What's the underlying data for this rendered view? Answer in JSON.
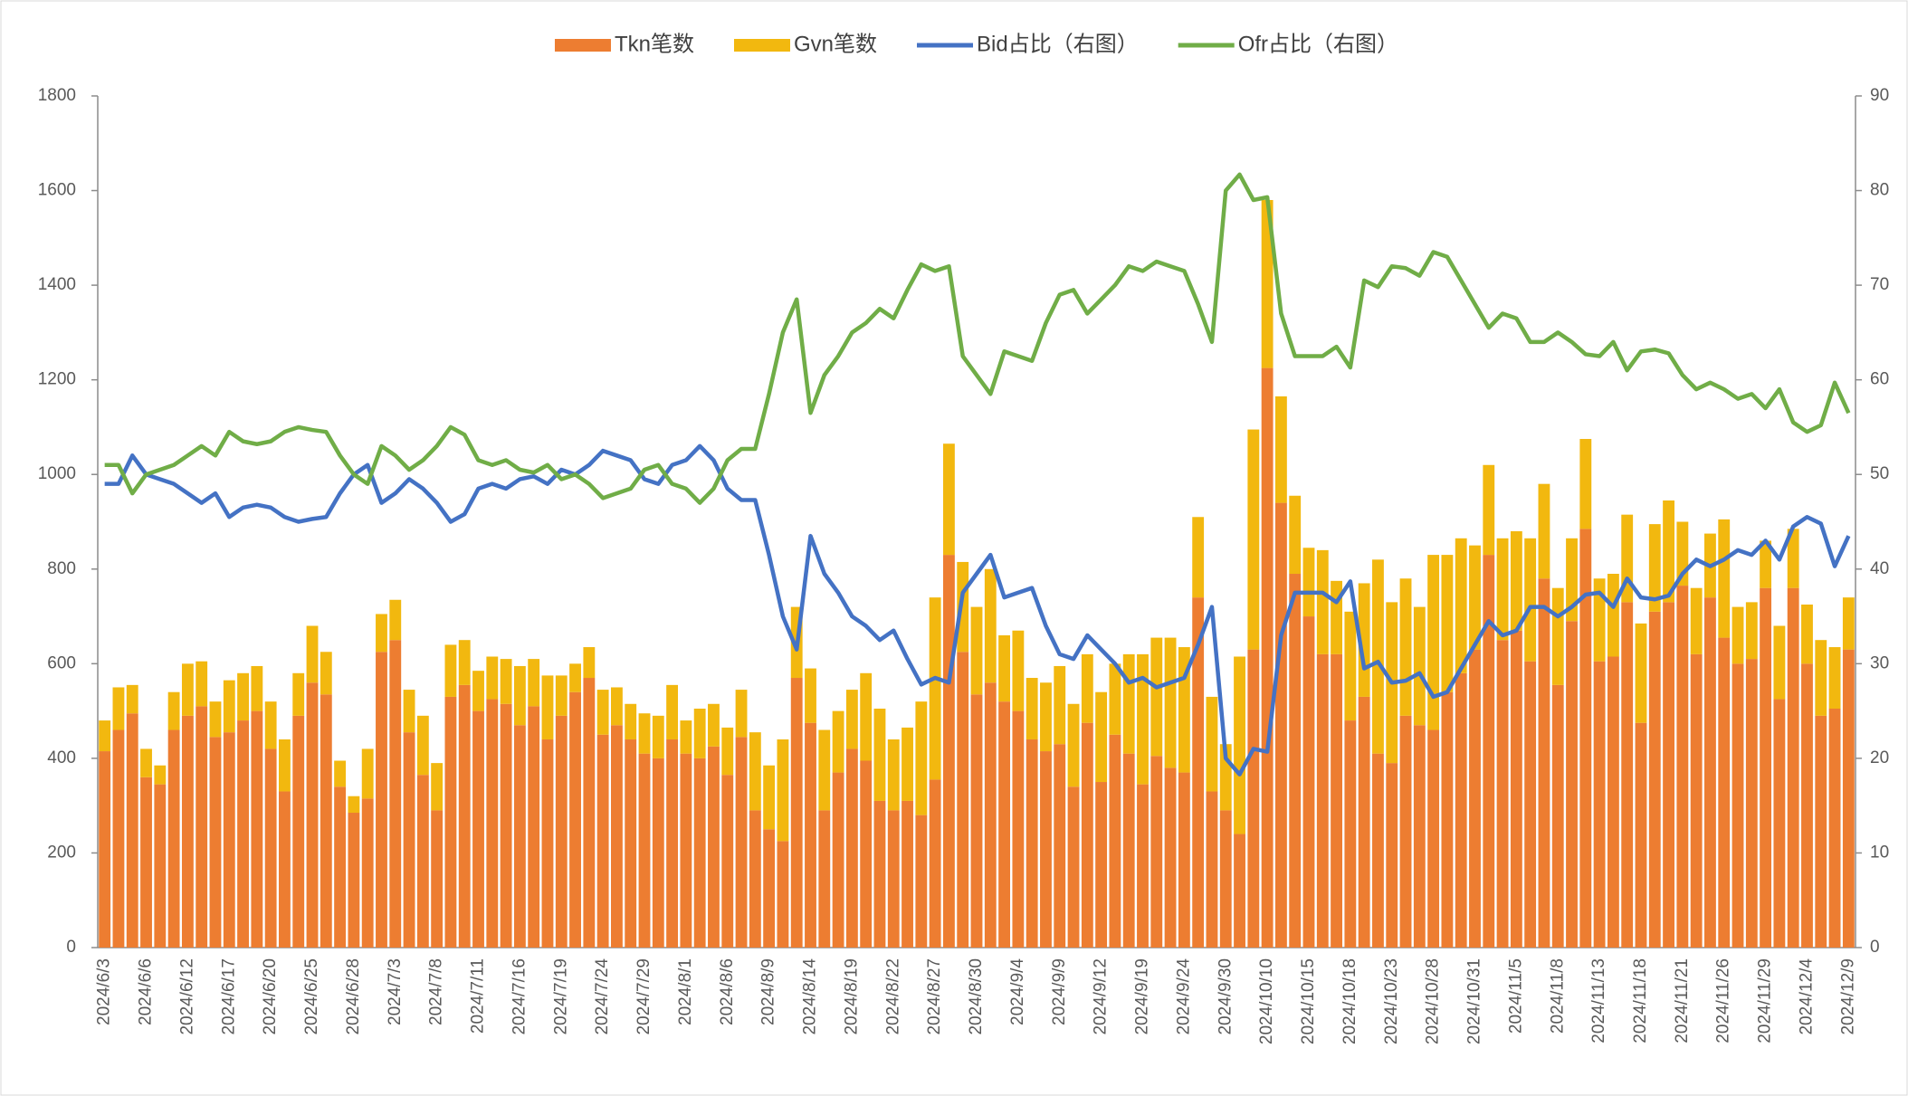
{
  "chart_data": {
    "type": "bar-line",
    "categories": [
      "2024/6/3",
      null,
      null,
      "2024/6/6",
      null,
      null,
      "2024/6/12",
      null,
      null,
      "2024/6/17",
      null,
      null,
      "2024/6/20",
      null,
      null,
      "2024/6/25",
      null,
      null,
      "2024/6/28",
      null,
      null,
      "2024/7/3",
      null,
      null,
      "2024/7/8",
      null,
      null,
      "2024/7/11",
      null,
      null,
      "2024/7/16",
      null,
      null,
      "2024/7/19",
      null,
      null,
      "2024/7/24",
      null,
      null,
      "2024/7/29",
      null,
      null,
      "2024/8/1",
      null,
      null,
      "2024/8/6",
      null,
      null,
      "2024/8/9",
      null,
      null,
      "2024/8/14",
      null,
      null,
      "2024/8/19",
      null,
      null,
      "2024/8/22",
      null,
      null,
      "2024/8/27",
      null,
      null,
      "2024/8/30",
      null,
      null,
      "2024/9/4",
      null,
      null,
      "2024/9/9",
      null,
      null,
      "2024/9/12",
      null,
      null,
      "2024/9/19",
      null,
      null,
      "2024/9/24",
      null,
      null,
      "2024/9/30",
      null,
      null,
      "2024/10/10",
      null,
      null,
      "2024/10/15",
      null,
      null,
      "2024/10/18",
      null,
      null,
      "2024/10/23",
      null,
      null,
      "2024/10/28",
      null,
      null,
      "2024/10/31",
      null,
      null,
      "2024/11/5",
      null,
      null,
      "2024/11/8",
      null,
      null,
      "2024/11/13",
      null,
      null,
      "2024/11/18",
      null,
      null,
      "2024/11/21",
      null,
      null,
      "2024/11/26",
      null,
      null,
      "2024/11/29",
      null,
      null,
      "2024/12/4",
      null,
      null,
      "2024/12/9"
    ],
    "series": [
      {
        "name": "Tkn笔数",
        "kind": "bar",
        "color": "#ed7d31",
        "values": [
          415,
          460,
          495,
          360,
          345,
          460,
          490,
          510,
          445,
          455,
          480,
          500,
          420,
          330,
          490,
          560,
          535,
          340,
          285,
          315,
          625,
          650,
          455,
          365,
          290,
          530,
          555,
          500,
          525,
          515,
          470,
          510,
          440,
          490,
          540,
          570,
          450,
          470,
          440,
          410,
          400,
          440,
          410,
          400,
          425,
          365,
          445,
          290,
          250,
          225,
          570,
          475,
          290,
          370,
          420,
          395,
          310,
          290,
          310,
          280,
          355,
          830,
          625,
          535,
          560,
          520,
          500,
          440,
          415,
          430,
          340,
          475,
          350,
          450,
          410,
          345,
          405,
          380,
          370,
          740,
          330,
          290,
          240,
          630,
          1225,
          940,
          790,
          700,
          620,
          620,
          480,
          530,
          410,
          390,
          490,
          470,
          460,
          540,
          580,
          630,
          830,
          650,
          670,
          605,
          780,
          555,
          690,
          885,
          605,
          615,
          730,
          475,
          710,
          730,
          765,
          620,
          740,
          655,
          600,
          610,
          760,
          525,
          760,
          600,
          490,
          505,
          630
        ]
      },
      {
        "name": "Gvn笔数",
        "kind": "bar",
        "color": "#f2b80f",
        "values": [
          65,
          90,
          60,
          60,
          40,
          80,
          110,
          95,
          75,
          110,
          100,
          95,
          100,
          110,
          90,
          120,
          90,
          55,
          35,
          105,
          80,
          85,
          90,
          125,
          100,
          110,
          95,
          85,
          90,
          95,
          125,
          100,
          135,
          85,
          60,
          65,
          95,
          80,
          75,
          85,
          90,
          115,
          70,
          105,
          90,
          100,
          100,
          165,
          135,
          215,
          150,
          115,
          170,
          130,
          125,
          185,
          195,
          150,
          155,
          240,
          385,
          235,
          190,
          185,
          240,
          140,
          170,
          130,
          145,
          165,
          175,
          145,
          190,
          150,
          210,
          275,
          250,
          275,
          265,
          170,
          200,
          140,
          375,
          465,
          355,
          225,
          165,
          145,
          220,
          155,
          230,
          240,
          410,
          340,
          290,
          250,
          370,
          290,
          285,
          220,
          190,
          215,
          210,
          260,
          200,
          205,
          175,
          190,
          175,
          175,
          185,
          210,
          185,
          215,
          135,
          140,
          135,
          250,
          120,
          120,
          100,
          155,
          125,
          125,
          160,
          130,
          110
        ]
      },
      {
        "name": "Bid占比（右图）",
        "kind": "line",
        "axis": "y2",
        "color": "#4472c4",
        "values": [
          49,
          49,
          52,
          50,
          49.5,
          49,
          48,
          47,
          48,
          45.5,
          46.5,
          46.8,
          46.5,
          45.5,
          45,
          45.3,
          45.5,
          48,
          50,
          51,
          47,
          48,
          49.5,
          48.5,
          47,
          45,
          45.8,
          48.5,
          49,
          48.5,
          49.5,
          49.8,
          49,
          50.5,
          50,
          51,
          52.5,
          52,
          51.5,
          49.5,
          49,
          51,
          51.5,
          53,
          51.5,
          48.5,
          47.3,
          47.3,
          41.5,
          35,
          31.5,
          43.5,
          39.5,
          37.5,
          35,
          34,
          32.5,
          33.5,
          30.5,
          27.8,
          28.5,
          28,
          37.5,
          39.5,
          41.5,
          37,
          37.5,
          38,
          34,
          31,
          30.5,
          33,
          31.5,
          30,
          28,
          28.5,
          27.5,
          28,
          28.5,
          32,
          36,
          20,
          18.3,
          21,
          20.7,
          33,
          37.5,
          37.5,
          37.5,
          36.5,
          38.7,
          29.5,
          30.2,
          28,
          28.2,
          29,
          26.5,
          27,
          29.5,
          32,
          34.5,
          33,
          33.5,
          36,
          36,
          35,
          36,
          37.3,
          37.5,
          36,
          39,
          37,
          36.8,
          37.2,
          39.5,
          41,
          40.3,
          41,
          42,
          41.5,
          43,
          41,
          44.5,
          45.5,
          44.8,
          40.3,
          43.5
        ]
      },
      {
        "name": "Ofr占比（右图）",
        "kind": "line",
        "axis": "y2",
        "color": "#70ad47",
        "values": [
          51,
          51,
          48,
          50,
          50.5,
          51,
          52,
          53,
          52,
          54.5,
          53.5,
          53.2,
          53.5,
          54.5,
          55,
          54.7,
          54.5,
          52,
          50,
          49,
          53,
          52,
          50.5,
          51.5,
          53,
          55,
          54.2,
          51.5,
          51,
          51.5,
          50.5,
          50.2,
          51,
          49.5,
          50,
          49,
          47.5,
          48,
          48.5,
          50.5,
          51,
          49,
          48.5,
          47,
          48.5,
          51.5,
          52.7,
          52.7,
          58.5,
          65,
          68.5,
          56.5,
          60.5,
          62.5,
          65,
          66,
          67.5,
          66.5,
          69.5,
          72.2,
          71.5,
          72,
          62.5,
          60.5,
          58.5,
          63,
          62.5,
          62,
          66,
          69,
          69.5,
          67,
          68.5,
          70,
          72,
          71.5,
          72.5,
          72,
          71.5,
          68,
          64,
          80,
          81.7,
          79,
          79.3,
          67,
          62.5,
          62.5,
          62.5,
          63.5,
          61.3,
          70.5,
          69.8,
          72,
          71.8,
          71,
          73.5,
          73,
          70.5,
          68,
          65.5,
          67,
          66.5,
          64,
          64,
          65,
          64,
          62.7,
          62.5,
          64,
          61,
          63,
          63.2,
          62.8,
          60.5,
          59,
          59.7,
          59,
          58,
          58.5,
          57,
          59,
          55.5,
          54.5,
          55.2,
          59.7,
          56.5
        ]
      }
    ],
    "ylim": [
      0,
      1800
    ],
    "yticks": [
      0,
      200,
      400,
      600,
      800,
      1000,
      1200,
      1400,
      1600,
      1800
    ],
    "y2lim": [
      0,
      90
    ],
    "y2ticks": [
      0,
      10,
      20,
      30,
      40,
      50,
      60,
      70,
      80,
      90
    ],
    "stacked": true,
    "grid": false,
    "legend": "top"
  }
}
